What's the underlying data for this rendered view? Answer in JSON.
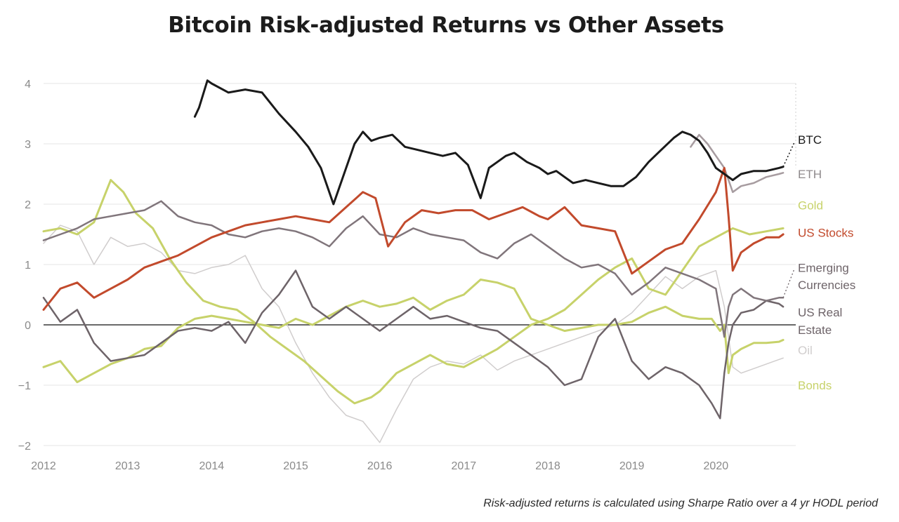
{
  "chart_data": {
    "type": "line",
    "title": "Bitcoin Risk-adjusted Returns vs Other Assets",
    "footnote": "Risk-adjusted returns is calculated using Sharpe Ratio over a 4 yr HODL period",
    "xlim": [
      2012,
      2020.95
    ],
    "ylim": [
      -2,
      4
    ],
    "x_ticks": [
      "2012",
      "2013",
      "2014",
      "2015",
      "2016",
      "2017",
      "2018",
      "2019",
      "2020"
    ],
    "y_ticks": [
      "4",
      "3",
      "2",
      "1",
      "0",
      "−1",
      "−2"
    ],
    "grid": true,
    "zero_line": true,
    "legend": "direct labels at right end",
    "series": [
      {
        "name": "BTC",
        "color": "#1a1a1a",
        "width": 3,
        "x": [
          2013.8,
          2013.85,
          2013.95,
          2014.0,
          2014.2,
          2014.4,
          2014.6,
          2014.8,
          2015.0,
          2015.15,
          2015.3,
          2015.45,
          2015.55,
          2015.7,
          2015.8,
          2015.9,
          2016.0,
          2016.15,
          2016.3,
          2016.45,
          2016.6,
          2016.75,
          2016.9,
          2017.05,
          2017.2,
          2017.3,
          2017.4,
          2017.5,
          2017.6,
          2017.75,
          2017.9,
          2018.0,
          2018.1,
          2018.2,
          2018.3,
          2018.45,
          2018.6,
          2018.75,
          2018.9,
          2019.05,
          2019.2,
          2019.35,
          2019.5,
          2019.6,
          2019.7,
          2019.8,
          2019.9,
          2020.0,
          2020.1,
          2020.2,
          2020.3,
          2020.45,
          2020.6,
          2020.75,
          2020.8
        ],
        "values": [
          3.45,
          3.6,
          4.05,
          4.0,
          3.85,
          3.9,
          3.85,
          3.5,
          3.2,
          2.95,
          2.6,
          2.0,
          2.4,
          3.0,
          3.2,
          3.05,
          3.1,
          3.15,
          2.95,
          2.9,
          2.85,
          2.8,
          2.85,
          2.65,
          2.1,
          2.6,
          2.7,
          2.8,
          2.85,
          2.7,
          2.6,
          2.5,
          2.55,
          2.45,
          2.35,
          2.4,
          2.35,
          2.3,
          2.3,
          2.45,
          2.7,
          2.9,
          3.1,
          3.2,
          3.15,
          3.05,
          2.85,
          2.6,
          2.5,
          2.4,
          2.5,
          2.55,
          2.55,
          2.6,
          2.62
        ]
      },
      {
        "name": "ETH",
        "color": "#a79ca0",
        "width": 2.5,
        "x": [
          2019.7,
          2019.8,
          2019.9,
          2020.0,
          2020.1,
          2020.2,
          2020.3,
          2020.45,
          2020.6,
          2020.75,
          2020.8
        ],
        "values": [
          2.95,
          3.15,
          3.0,
          2.8,
          2.6,
          2.2,
          2.3,
          2.35,
          2.45,
          2.5,
          2.52
        ]
      },
      {
        "name": "Gold",
        "color": "#c7d26a",
        "width": 3,
        "x": [
          2012.0,
          2012.2,
          2012.4,
          2012.6,
          2012.8,
          2012.95,
          2013.1,
          2013.3,
          2013.5,
          2013.7,
          2013.9,
          2014.1,
          2014.3,
          2014.5,
          2014.7,
          2014.9,
          2015.1,
          2015.3,
          2015.5,
          2015.7,
          2015.9,
          2016.0,
          2016.2,
          2016.4,
          2016.6,
          2016.8,
          2017.0,
          2017.2,
          2017.4,
          2017.6,
          2017.8,
          2018.0,
          2018.2,
          2018.4,
          2018.6,
          2018.8,
          2019.0,
          2019.2,
          2019.4,
          2019.6,
          2019.8,
          2020.0,
          2020.2,
          2020.4,
          2020.6,
          2020.8
        ],
        "values": [
          1.55,
          1.6,
          1.5,
          1.7,
          2.4,
          2.2,
          1.85,
          1.6,
          1.1,
          0.7,
          0.4,
          0.3,
          0.25,
          0.05,
          -0.2,
          -0.4,
          -0.6,
          -0.85,
          -1.1,
          -1.3,
          -1.2,
          -1.1,
          -0.8,
          -0.65,
          -0.5,
          -0.65,
          -0.7,
          -0.55,
          -0.4,
          -0.2,
          0.0,
          0.1,
          0.25,
          0.5,
          0.75,
          0.95,
          1.1,
          0.6,
          0.5,
          0.9,
          1.3,
          1.45,
          1.6,
          1.5,
          1.55,
          1.6
        ]
      },
      {
        "name": "US Stocks",
        "color": "#c24a2c",
        "width": 3,
        "x": [
          2012.0,
          2012.2,
          2012.4,
          2012.6,
          2012.8,
          2013.0,
          2013.2,
          2013.4,
          2013.6,
          2013.8,
          2014.0,
          2014.2,
          2014.4,
          2014.6,
          2014.8,
          2015.0,
          2015.2,
          2015.4,
          2015.6,
          2015.8,
          2015.95,
          2016.1,
          2016.3,
          2016.5,
          2016.7,
          2016.9,
          2017.1,
          2017.3,
          2017.5,
          2017.7,
          2017.9,
          2018.0,
          2018.2,
          2018.4,
          2018.6,
          2018.8,
          2018.9,
          2019.0,
          2019.2,
          2019.4,
          2019.6,
          2019.8,
          2020.0,
          2020.1,
          2020.15,
          2020.2,
          2020.3,
          2020.45,
          2020.6,
          2020.75,
          2020.8
        ],
        "values": [
          0.25,
          0.6,
          0.7,
          0.45,
          0.6,
          0.75,
          0.95,
          1.05,
          1.15,
          1.3,
          1.45,
          1.55,
          1.65,
          1.7,
          1.75,
          1.8,
          1.75,
          1.7,
          1.95,
          2.2,
          2.1,
          1.3,
          1.7,
          1.9,
          1.85,
          1.9,
          1.9,
          1.75,
          1.85,
          1.95,
          1.8,
          1.75,
          1.95,
          1.65,
          1.6,
          1.55,
          1.2,
          0.85,
          1.05,
          1.25,
          1.35,
          1.75,
          2.2,
          2.6,
          1.8,
          0.9,
          1.2,
          1.35,
          1.45,
          1.45,
          1.5
        ]
      },
      {
        "name": "Emerging Currencies",
        "color": "#80757b",
        "width": 2.5,
        "x": [
          2012.0,
          2012.2,
          2012.4,
          2012.6,
          2012.8,
          2013.0,
          2013.2,
          2013.4,
          2013.6,
          2013.8,
          2014.0,
          2014.2,
          2014.4,
          2014.6,
          2014.8,
          2015.0,
          2015.2,
          2015.4,
          2015.6,
          2015.8,
          2016.0,
          2016.2,
          2016.4,
          2016.6,
          2016.8,
          2017.0,
          2017.2,
          2017.4,
          2017.6,
          2017.8,
          2018.0,
          2018.2,
          2018.4,
          2018.6,
          2018.8,
          2019.0,
          2019.2,
          2019.4,
          2019.6,
          2019.8,
          2020.0,
          2020.1,
          2020.15,
          2020.2,
          2020.3,
          2020.45,
          2020.6,
          2020.75,
          2020.8
        ],
        "values": [
          1.4,
          1.5,
          1.6,
          1.75,
          1.8,
          1.85,
          1.9,
          2.05,
          1.8,
          1.7,
          1.65,
          1.5,
          1.45,
          1.55,
          1.6,
          1.55,
          1.45,
          1.3,
          1.6,
          1.8,
          1.5,
          1.45,
          1.6,
          1.5,
          1.45,
          1.4,
          1.2,
          1.1,
          1.35,
          1.5,
          1.3,
          1.1,
          0.95,
          1.0,
          0.85,
          0.5,
          0.7,
          0.95,
          0.85,
          0.75,
          0.6,
          -0.2,
          0.3,
          0.5,
          0.6,
          0.45,
          0.4,
          0.45,
          0.45
        ]
      },
      {
        "name": "US Real Estate",
        "color": "#6e6469",
        "width": 2.5,
        "x": [
          2012.0,
          2012.2,
          2012.4,
          2012.6,
          2012.8,
          2013.0,
          2013.2,
          2013.4,
          2013.6,
          2013.8,
          2014.0,
          2014.2,
          2014.4,
          2014.6,
          2014.8,
          2015.0,
          2015.2,
          2015.4,
          2015.6,
          2015.8,
          2016.0,
          2016.2,
          2016.4,
          2016.6,
          2016.8,
          2017.0,
          2017.2,
          2017.4,
          2017.6,
          2017.8,
          2018.0,
          2018.2,
          2018.4,
          2018.6,
          2018.8,
          2019.0,
          2019.2,
          2019.4,
          2019.6,
          2019.8,
          2019.95,
          2020.05,
          2020.1,
          2020.15,
          2020.2,
          2020.3,
          2020.45,
          2020.6,
          2020.75,
          2020.8
        ],
        "values": [
          0.45,
          0.05,
          0.25,
          -0.3,
          -0.6,
          -0.55,
          -0.5,
          -0.3,
          -0.1,
          -0.05,
          -0.1,
          0.05,
          -0.3,
          0.2,
          0.5,
          0.9,
          0.3,
          0.1,
          0.3,
          0.1,
          -0.1,
          0.1,
          0.3,
          0.1,
          0.15,
          0.05,
          -0.05,
          -0.1,
          -0.3,
          -0.5,
          -0.7,
          -1.0,
          -0.9,
          -0.2,
          0.1,
          -0.6,
          -0.9,
          -0.7,
          -0.8,
          -1.0,
          -1.3,
          -1.55,
          -0.8,
          -0.3,
          0.0,
          0.2,
          0.25,
          0.4,
          0.35,
          0.3
        ]
      },
      {
        "name": "Oil",
        "color": "#d0cdcd",
        "width": 1.5,
        "x": [
          2012.0,
          2012.2,
          2012.4,
          2012.6,
          2012.8,
          2013.0,
          2013.2,
          2013.4,
          2013.6,
          2013.8,
          2014.0,
          2014.2,
          2014.4,
          2014.6,
          2014.8,
          2015.0,
          2015.2,
          2015.4,
          2015.6,
          2015.8,
          2016.0,
          2016.2,
          2016.4,
          2016.6,
          2016.8,
          2017.0,
          2017.2,
          2017.4,
          2017.6,
          2017.8,
          2018.0,
          2018.2,
          2018.4,
          2018.6,
          2018.8,
          2019.0,
          2019.2,
          2019.4,
          2019.6,
          2019.8,
          2020.0,
          2020.1,
          2020.2,
          2020.3,
          2020.5,
          2020.7,
          2020.8
        ],
        "values": [
          1.35,
          1.65,
          1.55,
          1.0,
          1.45,
          1.3,
          1.35,
          1.2,
          0.9,
          0.85,
          0.95,
          1.0,
          1.15,
          0.6,
          0.3,
          -0.3,
          -0.8,
          -1.2,
          -1.5,
          -1.6,
          -1.95,
          -1.4,
          -0.9,
          -0.7,
          -0.6,
          -0.65,
          -0.5,
          -0.75,
          -0.6,
          -0.5,
          -0.4,
          -0.3,
          -0.2,
          -0.1,
          0.0,
          0.2,
          0.5,
          0.8,
          0.6,
          0.8,
          0.9,
          0.3,
          -0.7,
          -0.8,
          -0.7,
          -0.6,
          -0.55
        ]
      },
      {
        "name": "Bonds",
        "color": "#c7d26a",
        "width": 3,
        "x": [
          2012.0,
          2012.2,
          2012.4,
          2012.6,
          2012.8,
          2013.0,
          2013.2,
          2013.4,
          2013.6,
          2013.8,
          2014.0,
          2014.2,
          2014.4,
          2014.6,
          2014.8,
          2015.0,
          2015.2,
          2015.4,
          2015.6,
          2015.8,
          2016.0,
          2016.2,
          2016.4,
          2016.6,
          2016.8,
          2017.0,
          2017.2,
          2017.4,
          2017.6,
          2017.8,
          2018.0,
          2018.2,
          2018.4,
          2018.6,
          2018.8,
          2019.0,
          2019.2,
          2019.4,
          2019.6,
          2019.8,
          2019.95,
          2020.05,
          2020.1,
          2020.15,
          2020.2,
          2020.3,
          2020.45,
          2020.6,
          2020.75,
          2020.8
        ],
        "values": [
          -0.7,
          -0.6,
          -0.95,
          -0.8,
          -0.65,
          -0.55,
          -0.4,
          -0.35,
          -0.05,
          0.1,
          0.15,
          0.1,
          0.05,
          0.0,
          -0.05,
          0.1,
          0.0,
          0.15,
          0.3,
          0.4,
          0.3,
          0.35,
          0.45,
          0.25,
          0.4,
          0.5,
          0.75,
          0.7,
          0.6,
          0.1,
          0.0,
          -0.1,
          -0.05,
          0.0,
          0.0,
          0.05,
          0.2,
          0.3,
          0.15,
          0.1,
          0.1,
          -0.1,
          0.0,
          -0.8,
          -0.5,
          -0.4,
          -0.3,
          -0.3,
          -0.28,
          -0.25
        ]
      }
    ],
    "labels": [
      {
        "text": "BTC",
        "color": "#1a1a1a",
        "value": 3.07
      },
      {
        "text": "ETH",
        "color": "#8f8a8c",
        "value": 2.5
      },
      {
        "text": "Gold",
        "color": "#c7d26a",
        "value": 1.98
      },
      {
        "text": "US Stocks",
        "color": "#c24a2c",
        "value": 1.53
      },
      {
        "text": "Emerging",
        "color": "#6e6469",
        "value": 0.95
      },
      {
        "text": "Currencies",
        "color": "#6e6469",
        "value": 0.66
      },
      {
        "text": "US Real",
        "color": "#6e6469",
        "value": 0.21
      },
      {
        "text": "Estate",
        "color": "#6e6469",
        "value": -0.08
      },
      {
        "text": "Oil",
        "color": "#d0cdcd",
        "value": -0.42
      },
      {
        "text": "Bonds",
        "color": "#c7d26a",
        "value": -1.0
      }
    ]
  }
}
